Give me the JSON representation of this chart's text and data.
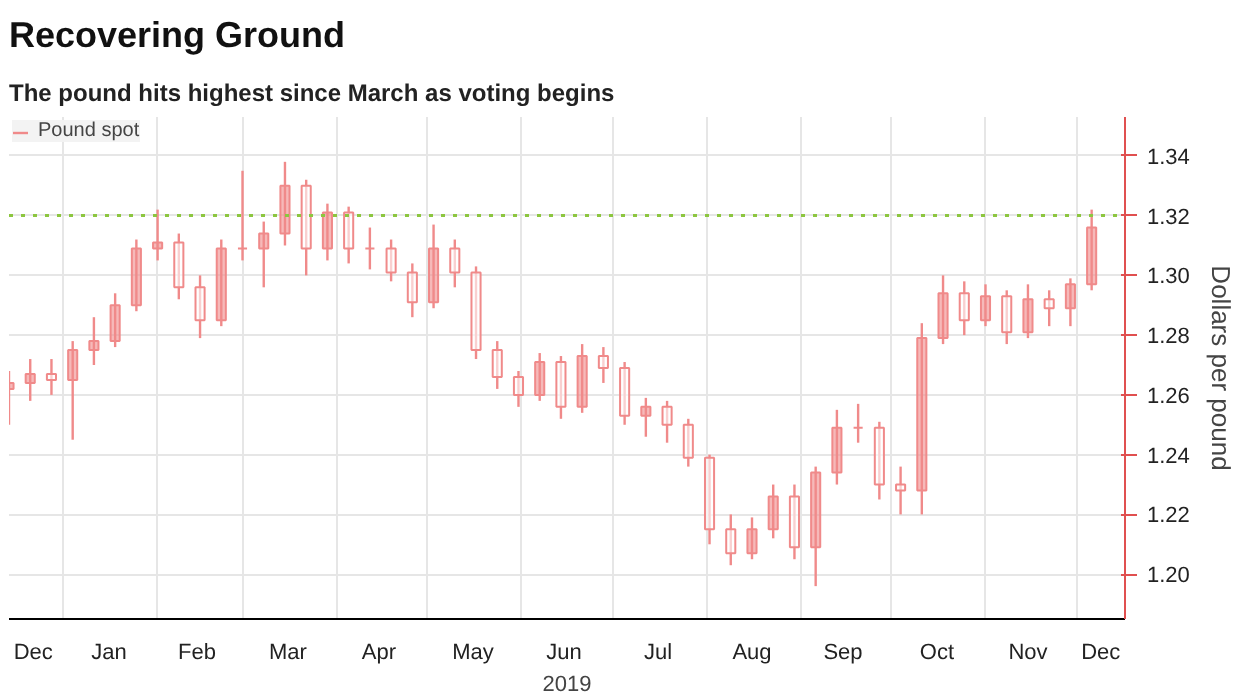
{
  "chart_data": {
    "type": "candlestick",
    "title": "Recovering Ground",
    "subtitle": "The pound hits highest since March as voting begins",
    "xlabel": "2019",
    "ylabel": "Dollars per pound",
    "x": [
      "2018-12-14",
      "2018-12-21",
      "2018-12-28",
      "2019-01-04",
      "2019-01-11",
      "2019-01-18",
      "2019-01-25",
      "2019-02-01",
      "2019-02-08",
      "2019-02-15",
      "2019-02-22",
      "2019-03-01",
      "2019-03-08",
      "2019-03-15",
      "2019-03-22",
      "2019-03-29",
      "2019-04-05",
      "2019-04-12",
      "2019-04-19",
      "2019-04-26",
      "2019-05-03",
      "2019-05-10",
      "2019-05-17",
      "2019-05-24",
      "2019-05-31",
      "2019-06-07",
      "2019-06-14",
      "2019-06-21",
      "2019-06-28",
      "2019-07-05",
      "2019-07-12",
      "2019-07-19",
      "2019-07-26",
      "2019-08-02",
      "2019-08-09",
      "2019-08-16",
      "2019-08-23",
      "2019-08-30",
      "2019-09-06",
      "2019-09-13",
      "2019-09-20",
      "2019-09-27",
      "2019-10-04",
      "2019-10-11",
      "2019-10-18",
      "2019-10-25",
      "2019-11-01",
      "2019-11-08",
      "2019-11-15",
      "2019-11-22",
      "2019-11-29",
      "2019-12-06"
    ],
    "series": [
      {
        "name": "Pound spot",
        "color": "#f08a8a",
        "ohlc": [
          [
            1.262,
            1.268,
            1.25,
            1.264
          ],
          [
            1.264,
            1.272,
            1.258,
            1.267
          ],
          [
            1.267,
            1.272,
            1.26,
            1.265
          ],
          [
            1.265,
            1.278,
            1.245,
            1.275
          ],
          [
            1.275,
            1.286,
            1.27,
            1.278
          ],
          [
            1.278,
            1.294,
            1.276,
            1.29
          ],
          [
            1.29,
            1.312,
            1.288,
            1.309
          ],
          [
            1.309,
            1.322,
            1.305,
            1.311
          ],
          [
            1.311,
            1.314,
            1.292,
            1.296
          ],
          [
            1.296,
            1.3,
            1.279,
            1.285
          ],
          [
            1.285,
            1.312,
            1.283,
            1.309
          ],
          [
            1.309,
            1.335,
            1.305,
            1.309
          ],
          [
            1.309,
            1.318,
            1.296,
            1.314
          ],
          [
            1.314,
            1.338,
            1.31,
            1.33
          ],
          [
            1.33,
            1.332,
            1.3,
            1.309
          ],
          [
            1.309,
            1.324,
            1.305,
            1.321
          ],
          [
            1.321,
            1.323,
            1.304,
            1.309
          ],
          [
            1.309,
            1.316,
            1.302,
            1.309
          ],
          [
            1.309,
            1.312,
            1.298,
            1.301
          ],
          [
            1.301,
            1.304,
            1.286,
            1.291
          ],
          [
            1.291,
            1.317,
            1.289,
            1.309
          ],
          [
            1.309,
            1.312,
            1.296,
            1.301
          ],
          [
            1.301,
            1.303,
            1.272,
            1.275
          ],
          [
            1.275,
            1.278,
            1.262,
            1.266
          ],
          [
            1.266,
            1.268,
            1.256,
            1.26
          ],
          [
            1.26,
            1.274,
            1.258,
            1.271
          ],
          [
            1.271,
            1.273,
            1.252,
            1.256
          ],
          [
            1.256,
            1.277,
            1.254,
            1.273
          ],
          [
            1.273,
            1.276,
            1.264,
            1.269
          ],
          [
            1.269,
            1.271,
            1.25,
            1.253
          ],
          [
            1.253,
            1.259,
            1.246,
            1.256
          ],
          [
            1.256,
            1.258,
            1.244,
            1.25
          ],
          [
            1.25,
            1.252,
            1.236,
            1.239
          ],
          [
            1.239,
            1.24,
            1.21,
            1.215
          ],
          [
            1.215,
            1.22,
            1.203,
            1.207
          ],
          [
            1.207,
            1.219,
            1.205,
            1.215
          ],
          [
            1.215,
            1.23,
            1.212,
            1.226
          ],
          [
            1.226,
            1.23,
            1.205,
            1.209
          ],
          [
            1.209,
            1.236,
            1.196,
            1.234
          ],
          [
            1.234,
            1.255,
            1.23,
            1.249
          ],
          [
            1.249,
            1.257,
            1.244,
            1.249
          ],
          [
            1.249,
            1.251,
            1.225,
            1.23
          ],
          [
            1.23,
            1.236,
            1.22,
            1.228
          ],
          [
            1.228,
            1.284,
            1.22,
            1.279
          ],
          [
            1.279,
            1.3,
            1.277,
            1.294
          ],
          [
            1.294,
            1.298,
            1.28,
            1.285
          ],
          [
            1.285,
            1.297,
            1.283,
            1.293
          ],
          [
            1.293,
            1.295,
            1.277,
            1.281
          ],
          [
            1.281,
            1.297,
            1.279,
            1.292
          ],
          [
            1.292,
            1.295,
            1.283,
            1.289
          ],
          [
            1.289,
            1.299,
            1.283,
            1.297
          ],
          [
            1.297,
            1.322,
            1.295,
            1.316
          ]
        ]
      }
    ],
    "xlim": [
      "2018-12-14",
      "2019-12-17"
    ],
    "xticks": [
      {
        "value": "2018-12-22",
        "label": "Dec"
      },
      {
        "value": "2019-01-16",
        "label": "Jan"
      },
      {
        "value": "2019-02-14",
        "label": "Feb"
      },
      {
        "value": "2019-03-16",
        "label": "Mar"
      },
      {
        "value": "2019-04-15",
        "label": "Apr"
      },
      {
        "value": "2019-05-16",
        "label": "May"
      },
      {
        "value": "2019-06-15",
        "label": "Jun"
      },
      {
        "value": "2019-07-16",
        "label": "Jul"
      },
      {
        "value": "2019-08-16",
        "label": "Aug"
      },
      {
        "value": "2019-09-15",
        "label": "Sep"
      },
      {
        "value": "2019-10-16",
        "label": "Oct"
      },
      {
        "value": "2019-11-15",
        "label": "Nov"
      },
      {
        "value": "2019-12-09",
        "label": "Dec"
      },
      {
        "value": "2019-01-01",
        "label": null
      },
      {
        "value": "2019-02-01",
        "label": null
      },
      {
        "value": "2019-03-01",
        "label": null
      },
      {
        "value": "2019-04-01",
        "label": null
      },
      {
        "value": "2019-05-01",
        "label": null
      },
      {
        "value": "2019-06-01",
        "label": null
      },
      {
        "value": "2019-07-01",
        "label": null
      },
      {
        "value": "2019-08-01",
        "label": null
      },
      {
        "value": "2019-09-01",
        "label": null
      },
      {
        "value": "2019-10-01",
        "label": null
      },
      {
        "value": "2019-11-01",
        "label": null
      },
      {
        "value": "2019-12-01",
        "label": null
      }
    ],
    "ylim": [
      1.185,
      1.353
    ],
    "yticks": [
      {
        "value": 1.2,
        "label": "1.20"
      },
      1.22,
      1.24,
      1.26,
      1.28,
      {
        "value": 1.3,
        "label": "1.30"
      },
      1.32,
      1.34
    ],
    "ref_lines": [
      {
        "axis": "y",
        "value": 1.32,
        "label": null,
        "color": "#8cc63f",
        "line_style": "dotted"
      }
    ],
    "grid": true,
    "legend": "top left"
  }
}
